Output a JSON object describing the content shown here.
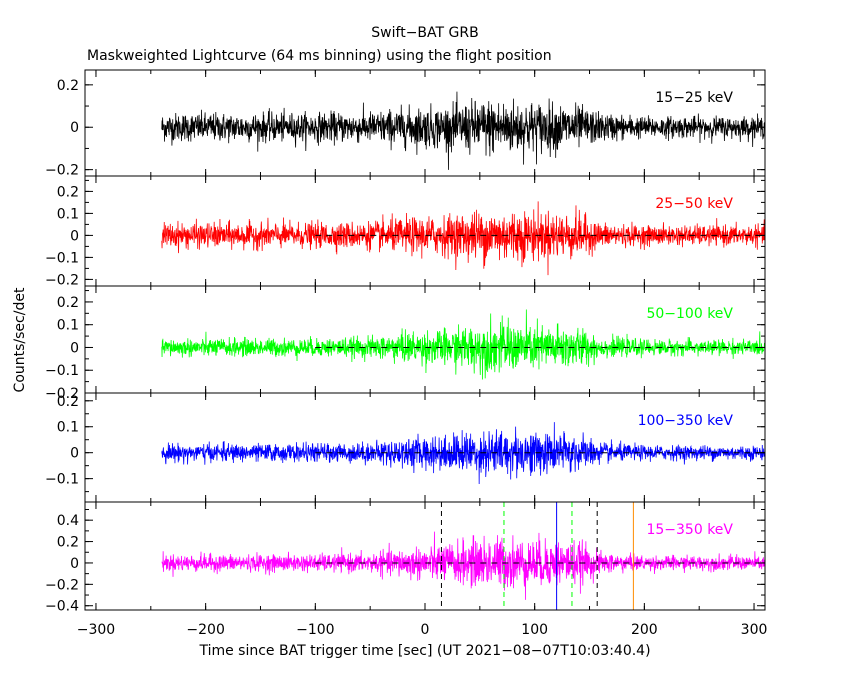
{
  "chart_data": {
    "type": "line",
    "title": "Swift−BAT GRB",
    "subtitle": "Maskweighted Lightcurve (64 ms binning) using the flight position",
    "xlabel": "Time since BAT trigger time [sec] (UT 2021−08−07T10:03:40.4)",
    "ylabel": "Counts/sec/det",
    "xlim": [
      -310,
      310
    ],
    "xticks": [
      -300,
      -200,
      -100,
      0,
      100,
      200,
      300
    ],
    "xtick_labels": [
      "−300",
      "−200",
      "−100",
      "0",
      "100",
      "200",
      "300"
    ],
    "data_range": [
      -240,
      310
    ],
    "panels": [
      {
        "name": "15−25 keV",
        "color": "#000000",
        "ylim": [
          -0.23,
          0.27
        ],
        "yticks": [
          -0.2,
          0,
          0.2
        ],
        "ytick_labels": [
          "−0.2",
          "0",
          "0.2"
        ],
        "zero_line": false,
        "envelope": [
          [
            -240,
            0.06
          ],
          [
            -100,
            0.06
          ],
          [
            -50,
            0.065
          ],
          [
            -20,
            0.08
          ],
          [
            20,
            0.09
          ],
          [
            60,
            0.12
          ],
          [
            100,
            0.11
          ],
          [
            140,
            0.09
          ],
          [
            160,
            0.06
          ],
          [
            200,
            0.045
          ],
          [
            310,
            0.045
          ]
        ]
      },
      {
        "name": "25−50 keV",
        "color": "#ff0000",
        "ylim": [
          -0.23,
          0.27
        ],
        "yticks": [
          -0.2,
          -0.1,
          0,
          0.1,
          0.2
        ],
        "ytick_labels": [
          "−0.2",
          "−0.1",
          "0",
          "0.1",
          "0.2"
        ],
        "zero_line": true,
        "envelope": [
          [
            -240,
            0.05
          ],
          [
            -100,
            0.05
          ],
          [
            -50,
            0.055
          ],
          [
            -20,
            0.07
          ],
          [
            20,
            0.08
          ],
          [
            60,
            0.11
          ],
          [
            100,
            0.1
          ],
          [
            140,
            0.09
          ],
          [
            160,
            0.05
          ],
          [
            200,
            0.04
          ],
          [
            310,
            0.04
          ]
        ]
      },
      {
        "name": "50−100 keV",
        "color": "#00ff00",
        "ylim": [
          -0.2,
          0.27
        ],
        "yticks": [
          -0.2,
          -0.1,
          0,
          0.1,
          0.2
        ],
        "ytick_labels": [
          "−0.2",
          "−0.1",
          "0",
          "0.1",
          "0.2"
        ],
        "zero_line": true,
        "envelope": [
          [
            -240,
            0.035
          ],
          [
            -100,
            0.035
          ],
          [
            -50,
            0.04
          ],
          [
            -20,
            0.06
          ],
          [
            20,
            0.07
          ],
          [
            60,
            0.1
          ],
          [
            100,
            0.09
          ],
          [
            140,
            0.08
          ],
          [
            160,
            0.04
          ],
          [
            200,
            0.03
          ],
          [
            310,
            0.03
          ]
        ]
      },
      {
        "name": "100−350 keV",
        "color": "#0000ff",
        "ylim": [
          -0.19,
          0.23
        ],
        "yticks": [
          -0.1,
          0,
          0.1,
          0.2
        ],
        "ytick_labels": [
          "−0.1",
          "0",
          "0.1",
          "0.2"
        ],
        "zero_line": true,
        "envelope": [
          [
            -240,
            0.03
          ],
          [
            -100,
            0.03
          ],
          [
            -50,
            0.035
          ],
          [
            -20,
            0.05
          ],
          [
            20,
            0.06
          ],
          [
            60,
            0.08
          ],
          [
            100,
            0.075
          ],
          [
            140,
            0.065
          ],
          [
            160,
            0.035
          ],
          [
            200,
            0.025
          ],
          [
            310,
            0.025
          ]
        ]
      },
      {
        "name": "15−350 keV",
        "color": "#ff00ff",
        "ylim": [
          -0.44,
          0.57
        ],
        "yticks": [
          -0.4,
          -0.2,
          0,
          0.2,
          0.4
        ],
        "ytick_labels": [
          "−0.4",
          "−0.2",
          "0",
          "0.2",
          "0.4"
        ],
        "zero_line": true,
        "envelope": [
          [
            -240,
            0.07
          ],
          [
            -100,
            0.07
          ],
          [
            -50,
            0.08
          ],
          [
            -20,
            0.12
          ],
          [
            20,
            0.16
          ],
          [
            60,
            0.22
          ],
          [
            100,
            0.2
          ],
          [
            140,
            0.18
          ],
          [
            160,
            0.09
          ],
          [
            200,
            0.06
          ],
          [
            310,
            0.06
          ]
        ],
        "markers": [
          {
            "x": 15,
            "color": "#000000",
            "style": "dashed"
          },
          {
            "x": 72,
            "color": "#00ff00",
            "style": "dashed"
          },
          {
            "x": 120,
            "color": "#0000ff",
            "style": "solid"
          },
          {
            "x": 134,
            "color": "#00ff00",
            "style": "dashed"
          },
          {
            "x": 157,
            "color": "#000000",
            "style": "dashed"
          },
          {
            "x": 190,
            "color": "#ff8c00",
            "style": "solid"
          }
        ]
      }
    ]
  }
}
